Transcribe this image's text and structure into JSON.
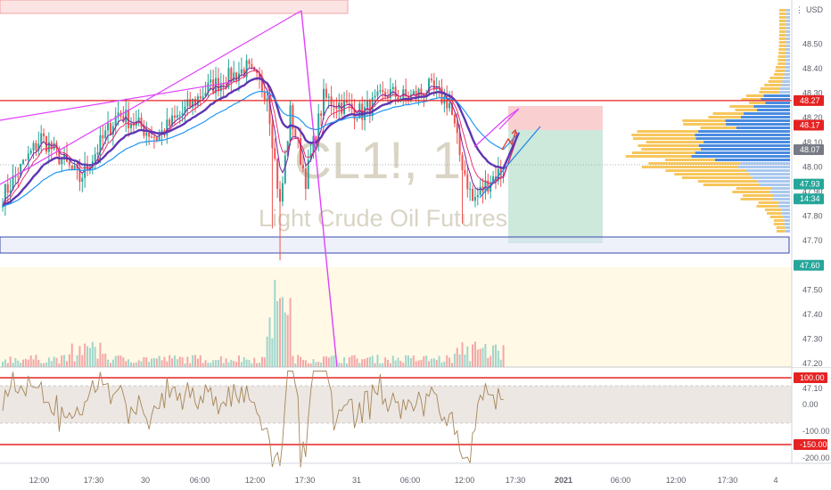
{
  "chart": {
    "symbol_watermark": "CL1!, 1",
    "name_watermark": "Light Crude Oil Futures",
    "currency": "USD",
    "axis_menu": "⋮"
  },
  "price_scale": {
    "ticks": [
      "48.50",
      "48.40",
      "48.30",
      "48.20",
      "48.10",
      "48.00",
      "47.90",
      "47.80",
      "47.70",
      "47.60",
      "47.50",
      "47.40",
      "47.30",
      "47.20",
      "47.10"
    ],
    "tags": [
      {
        "label": "48.27",
        "value": 48.27,
        "color": "#e52222"
      },
      {
        "label": "48.17",
        "value": 48.17,
        "color": "#e52222"
      },
      {
        "label": "48.07",
        "value": 48.07,
        "color": "#787b86"
      },
      {
        "label": "47.93",
        "value": 47.93,
        "color": "#26a69a"
      },
      {
        "label": "14:34",
        "value": 47.87,
        "color": "#26a69a"
      },
      {
        "label": "47.60",
        "value": 47.6,
        "color": "#26a69a"
      }
    ]
  },
  "oscillator_scale": {
    "ticks": [
      "100.00",
      "0.00",
      "-100.00",
      "-150.00",
      "-200.00"
    ],
    "tags": [
      {
        "label": "100.00",
        "value": 100,
        "color": "#e52222"
      },
      {
        "label": "-150.00",
        "value": -150,
        "color": "#e52222"
      }
    ]
  },
  "time_axis": {
    "labels": [
      "12:00",
      "17:30",
      "30",
      "06:00",
      "12:00",
      "17:30",
      "31",
      "06:00",
      "12:00",
      "17:30",
      "2021",
      "06:00",
      "12:00",
      "17:30",
      "4"
    ],
    "bold": [
      "2021"
    ]
  },
  "chart_data": {
    "type": "candlestick",
    "ylim": [
      47.07,
      48.61
    ],
    "horizontal_levels": [
      48.27,
      47.6
    ],
    "oscillator": {
      "ylim": [
        -245,
        130
      ],
      "levels": [
        100,
        -150
      ],
      "band": [
        -70,
        70
      ]
    },
    "colors": {
      "up": "#26a69a",
      "down": "#ef5350",
      "level": "#e52222",
      "cci": "#a6855a",
      "trend": "#e040fb"
    }
  }
}
